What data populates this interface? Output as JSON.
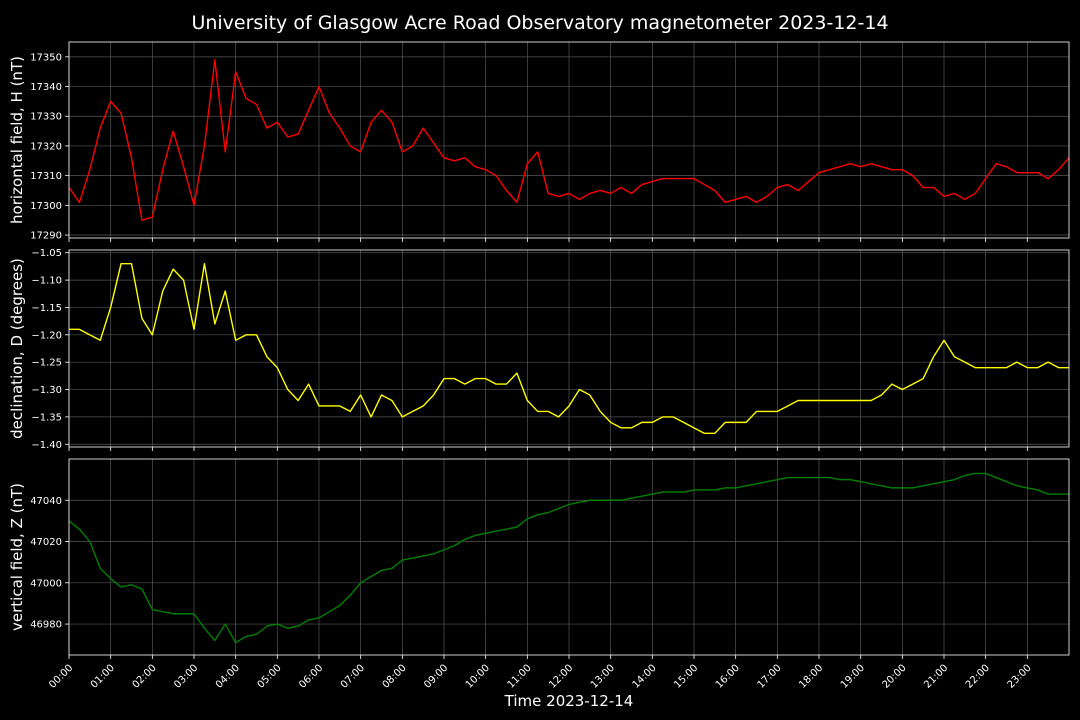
{
  "title": "University of Glasgow Acre Road Observatory magnetometer 2023-12-14",
  "xlabel": "Time 2023-12-14",
  "x_ticks": [
    "00:00",
    "01:00",
    "02:00",
    "03:00",
    "04:00",
    "05:00",
    "06:00",
    "07:00",
    "08:00",
    "09:00",
    "10:00",
    "11:00",
    "12:00",
    "13:00",
    "14:00",
    "15:00",
    "16:00",
    "17:00",
    "18:00",
    "19:00",
    "20:00",
    "21:00",
    "22:00",
    "23:00"
  ],
  "colors": {
    "background": "#000000",
    "grid": "#555555",
    "axes": "#ffffff"
  },
  "chart_data": [
    {
      "type": "line",
      "ylabel": "horizontal field, H (nT)",
      "color": "#ff0000",
      "ylim": [
        17289,
        17355
      ],
      "yticks": [
        17290,
        17300,
        17310,
        17320,
        17330,
        17340,
        17350
      ],
      "grid": true,
      "x": [
        0,
        0.25,
        0.5,
        0.75,
        1.0,
        1.25,
        1.5,
        1.75,
        2.0,
        2.25,
        2.5,
        2.75,
        3.0,
        3.25,
        3.5,
        3.75,
        4.0,
        4.25,
        4.5,
        4.75,
        5.0,
        5.25,
        5.5,
        5.75,
        6.0,
        6.25,
        6.5,
        6.75,
        7.0,
        7.25,
        7.5,
        7.75,
        8.0,
        8.25,
        8.5,
        8.75,
        9.0,
        9.25,
        9.5,
        9.75,
        10.0,
        10.25,
        10.5,
        10.75,
        11.0,
        11.25,
        11.5,
        11.75,
        12.0,
        12.25,
        12.5,
        12.75,
        13.0,
        13.25,
        13.5,
        13.75,
        14.0,
        14.25,
        14.5,
        14.75,
        15.0,
        15.25,
        15.5,
        15.75,
        16.0,
        16.25,
        16.5,
        16.75,
        17.0,
        17.25,
        17.5,
        17.75,
        18.0,
        18.25,
        18.5,
        18.75,
        19.0,
        19.25,
        19.5,
        19.75,
        20.0,
        20.25,
        20.5,
        20.75,
        21.0,
        21.25,
        21.5,
        21.75,
        22.0,
        22.25,
        22.5,
        22.75,
        23.0,
        23.25,
        23.5,
        23.75,
        24.0
      ],
      "y": [
        17306,
        17301,
        17312,
        17326,
        17335,
        17331,
        17316,
        17295,
        17296,
        17312,
        17325,
        17313,
        17300,
        17320,
        17349,
        17318,
        17345,
        17336,
        17334,
        17326,
        17328,
        17323,
        17324,
        17332,
        17340,
        17331,
        17326,
        17320,
        17318,
        17328,
        17332,
        17328,
        17318,
        17320,
        17326,
        17321,
        17316,
        17315,
        17316,
        17313,
        17312,
        17310,
        17305,
        17301,
        17314,
        17318,
        17304,
        17303,
        17304,
        17302,
        17304,
        17305,
        17304,
        17306,
        17304,
        17307,
        17308,
        17309,
        17309,
        17309,
        17309,
        17307,
        17305,
        17301,
        17302,
        17303,
        17301,
        17303,
        17306,
        17307,
        17305,
        17308,
        17311,
        17312,
        17313,
        17314,
        17313,
        17314,
        17313,
        17312,
        17312,
        17310,
        17306,
        17306,
        17303,
        17304,
        17302,
        17304,
        17309,
        17314,
        17313,
        17311,
        17311,
        17311,
        17309,
        17312,
        17316
      ]
    },
    {
      "type": "line",
      "ylabel": "declination, D (degrees)",
      "color": "#ffff00",
      "ylim": [
        -1.405,
        -1.045
      ],
      "yticks": [
        -1.4,
        -1.35,
        -1.3,
        -1.25,
        -1.2,
        -1.15,
        -1.1,
        -1.05
      ],
      "ytick_labels": [
        "−1.40",
        "−1.35",
        "−1.30",
        "−1.25",
        "−1.20",
        "−1.15",
        "−1.10",
        "−1.05"
      ],
      "grid": true,
      "x": [
        0,
        0.25,
        0.5,
        0.75,
        1.0,
        1.25,
        1.5,
        1.75,
        2.0,
        2.25,
        2.5,
        2.75,
        3.0,
        3.25,
        3.5,
        3.75,
        4.0,
        4.25,
        4.5,
        4.75,
        5.0,
        5.25,
        5.5,
        5.75,
        6.0,
        6.25,
        6.5,
        6.75,
        7.0,
        7.25,
        7.5,
        7.75,
        8.0,
        8.25,
        8.5,
        8.75,
        9.0,
        9.25,
        9.5,
        9.75,
        10.0,
        10.25,
        10.5,
        10.75,
        11.0,
        11.25,
        11.5,
        11.75,
        12.0,
        12.25,
        12.5,
        12.75,
        13.0,
        13.25,
        13.5,
        13.75,
        14.0,
        14.25,
        14.5,
        14.75,
        15.0,
        15.25,
        15.5,
        15.75,
        16.0,
        16.25,
        16.5,
        16.75,
        17.0,
        17.25,
        17.5,
        17.75,
        18.0,
        18.25,
        18.5,
        18.75,
        19.0,
        19.25,
        19.5,
        19.75,
        20.0,
        20.25,
        20.5,
        20.75,
        21.0,
        21.25,
        21.5,
        21.75,
        22.0,
        22.25,
        22.5,
        22.75,
        23.0,
        23.25,
        23.5,
        23.75,
        24.0
      ],
      "y": [
        -1.19,
        -1.19,
        -1.2,
        -1.21,
        -1.15,
        -1.07,
        -1.07,
        -1.17,
        -1.2,
        -1.12,
        -1.08,
        -1.1,
        -1.19,
        -1.07,
        -1.18,
        -1.12,
        -1.21,
        -1.2,
        -1.2,
        -1.24,
        -1.26,
        -1.3,
        -1.32,
        -1.29,
        -1.33,
        -1.33,
        -1.33,
        -1.34,
        -1.31,
        -1.35,
        -1.31,
        -1.32,
        -1.35,
        -1.34,
        -1.33,
        -1.31,
        -1.28,
        -1.28,
        -1.29,
        -1.28,
        -1.28,
        -1.29,
        -1.29,
        -1.27,
        -1.32,
        -1.34,
        -1.34,
        -1.35,
        -1.33,
        -1.3,
        -1.31,
        -1.34,
        -1.36,
        -1.37,
        -1.37,
        -1.36,
        -1.36,
        -1.35,
        -1.35,
        -1.36,
        -1.37,
        -1.38,
        -1.38,
        -1.36,
        -1.36,
        -1.36,
        -1.34,
        -1.34,
        -1.34,
        -1.33,
        -1.32,
        -1.32,
        -1.32,
        -1.32,
        -1.32,
        -1.32,
        -1.32,
        -1.32,
        -1.31,
        -1.29,
        -1.3,
        -1.29,
        -1.28,
        -1.24,
        -1.21,
        -1.24,
        -1.25,
        -1.26,
        -1.26,
        -1.26,
        -1.26,
        -1.25,
        -1.26,
        -1.26,
        -1.25,
        -1.26,
        -1.26
      ]
    },
    {
      "type": "line",
      "ylabel": "vertical field, Z (nT)",
      "color": "#008000",
      "ylim": [
        46965,
        47060
      ],
      "yticks": [
        46980,
        47000,
        47020,
        47040
      ],
      "grid": true,
      "x": [
        0,
        0.25,
        0.5,
        0.75,
        1.0,
        1.25,
        1.5,
        1.75,
        2.0,
        2.25,
        2.5,
        2.75,
        3.0,
        3.25,
        3.5,
        3.75,
        4.0,
        4.25,
        4.5,
        4.75,
        5.0,
        5.25,
        5.5,
        5.75,
        6.0,
        6.25,
        6.5,
        6.75,
        7.0,
        7.25,
        7.5,
        7.75,
        8.0,
        8.25,
        8.5,
        8.75,
        9.0,
        9.25,
        9.5,
        9.75,
        10.0,
        10.25,
        10.5,
        10.75,
        11.0,
        11.25,
        11.5,
        11.75,
        12.0,
        12.25,
        12.5,
        12.75,
        13.0,
        13.25,
        13.5,
        13.75,
        14.0,
        14.25,
        14.5,
        14.75,
        15.0,
        15.25,
        15.5,
        15.75,
        16.0,
        16.25,
        16.5,
        16.75,
        17.0,
        17.25,
        17.5,
        17.75,
        18.0,
        18.25,
        18.5,
        18.75,
        19.0,
        19.25,
        19.5,
        19.75,
        20.0,
        20.25,
        20.5,
        20.75,
        21.0,
        21.25,
        21.5,
        21.75,
        22.0,
        22.25,
        22.5,
        22.75,
        23.0,
        23.25,
        23.5,
        23.75,
        24.0
      ],
      "y": [
        47030,
        47026,
        47020,
        47007,
        47002,
        46998,
        46999,
        46997,
        46987,
        46986,
        46985,
        46985,
        46985,
        46978,
        46972,
        46980,
        46971,
        46974,
        46975,
        46979,
        46980,
        46978,
        46979,
        46982,
        46983,
        46986,
        46989,
        46994,
        47000,
        47003,
        47006,
        47007,
        47011,
        47012,
        47013,
        47014,
        47016,
        47018,
        47021,
        47023,
        47024,
        47025,
        47026,
        47027,
        47031,
        47033,
        47034,
        47036,
        47038,
        47039,
        47040,
        47040,
        47040,
        47040,
        47041,
        47042,
        47043,
        47044,
        47044,
        47044,
        47045,
        47045,
        47045,
        47046,
        47046,
        47047,
        47048,
        47049,
        47050,
        47051,
        47051,
        47051,
        47051,
        47051,
        47050,
        47050,
        47049,
        47048,
        47047,
        47046,
        47046,
        47046,
        47047,
        47048,
        47049,
        47050,
        47052,
        47053,
        47053,
        47051,
        47049,
        47047,
        47046,
        47045,
        47043,
        47043,
        47043
      ]
    }
  ]
}
